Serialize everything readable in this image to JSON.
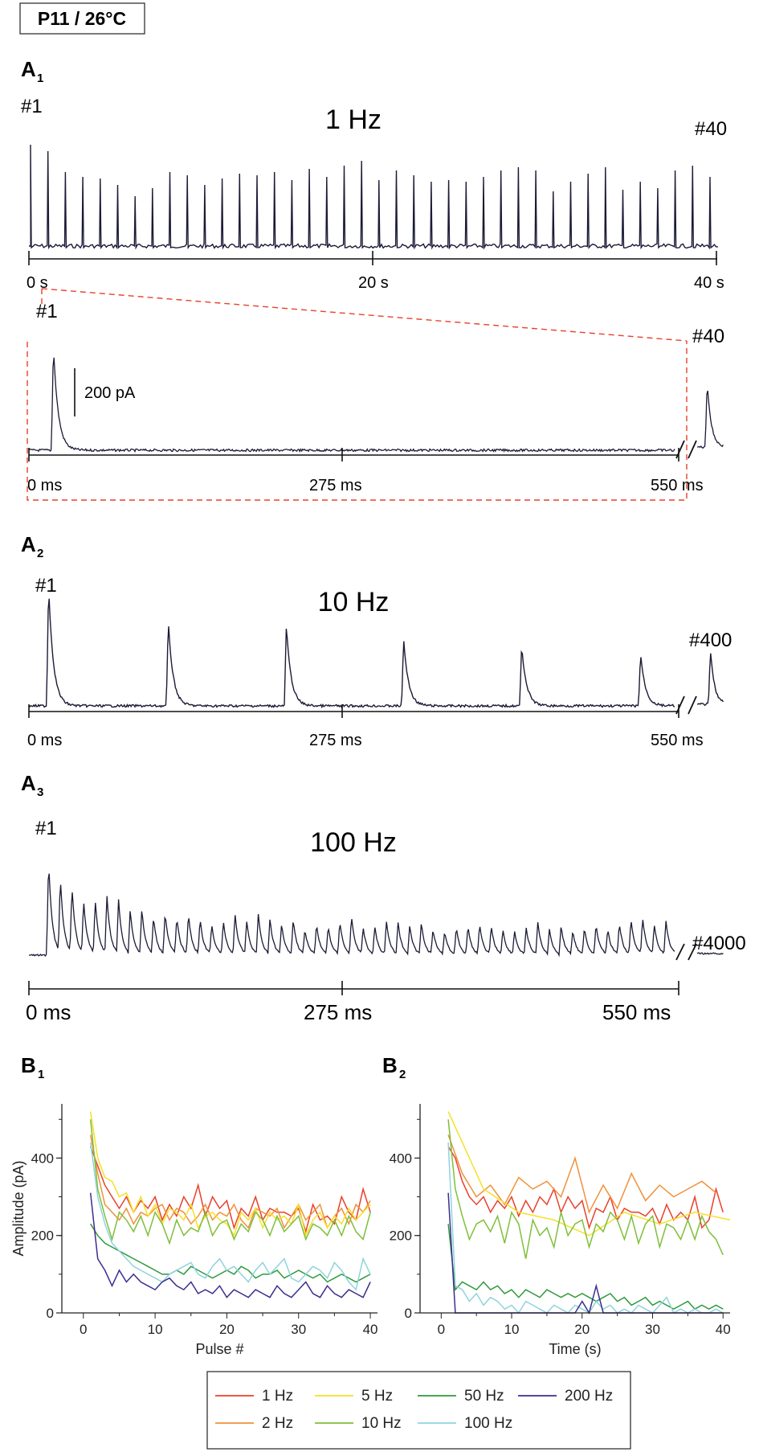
{
  "header": {
    "label": "P11 / 26°C"
  },
  "panels": {
    "A1": {
      "letter": "A",
      "sub": "1",
      "title": "1 Hz",
      "first_label": "#1",
      "last_label": "#40",
      "zoom_first": "#1",
      "zoom_last": "#40",
      "scale_label": "200 pA"
    },
    "A2": {
      "letter": "A",
      "sub": "2",
      "title": "10 Hz",
      "first_label": "#1",
      "last_label": "#400"
    },
    "A3": {
      "letter": "A",
      "sub": "3",
      "title": "100 Hz",
      "first_label": "#1",
      "last_label": "#4000"
    },
    "B1": {
      "letter": "B",
      "sub": "1"
    },
    "B2": {
      "letter": "B",
      "sub": "2"
    }
  },
  "trace_axes": {
    "A1_top": [
      "0 s",
      "20 s",
      "40 s"
    ],
    "A1_zoom": [
      "0 ms",
      "275 ms",
      "550 ms"
    ],
    "A2": [
      "0 ms",
      "275 ms",
      "550 ms"
    ],
    "A3": [
      "0 ms",
      "275 ms",
      "550 ms"
    ]
  },
  "chart_data": [
    {
      "type": "line",
      "id": "B1",
      "xlabel": "Pulse #",
      "ylabel": "Amplitude (pA)",
      "xlim": [
        -3,
        41
      ],
      "ylim": [
        0,
        540
      ],
      "xticks": [
        0,
        10,
        20,
        30,
        40
      ],
      "yticks": [
        0,
        200,
        400
      ],
      "x": [
        1,
        2,
        3,
        4,
        5,
        6,
        7,
        8,
        9,
        10,
        11,
        12,
        13,
        14,
        15,
        16,
        17,
        18,
        19,
        20,
        21,
        22,
        23,
        24,
        25,
        26,
        27,
        28,
        29,
        30,
        31,
        32,
        33,
        34,
        35,
        36,
        37,
        38,
        39,
        40
      ],
      "series": [
        {
          "name": "1 Hz",
          "color": "#e8412c",
          "values": [
            430,
            380,
            330,
            300,
            270,
            300,
            260,
            290,
            270,
            300,
            240,
            280,
            250,
            300,
            270,
            330,
            250,
            300,
            270,
            290,
            220,
            270,
            250,
            300,
            240,
            270,
            260,
            260,
            250,
            270,
            210,
            280,
            240,
            250,
            230,
            300,
            260,
            240,
            320,
            260
          ]
        },
        {
          "name": "2 Hz",
          "color": "#f0913a",
          "values": [
            460,
            360,
            280,
            260,
            240,
            270,
            230,
            260,
            250,
            270,
            280,
            240,
            270,
            260,
            230,
            250,
            280,
            240,
            260,
            250,
            280,
            240,
            220,
            270,
            260,
            250,
            270,
            220,
            250,
            280,
            240,
            260,
            280,
            220,
            250,
            270,
            230,
            280,
            260,
            290
          ]
        },
        {
          "name": "5 Hz",
          "color": "#f6e027",
          "values": [
            520,
            400,
            350,
            340,
            300,
            310,
            260,
            300,
            250,
            280,
            230,
            270,
            260,
            240,
            280,
            220,
            250,
            260,
            240,
            230,
            200,
            260,
            240,
            270,
            220,
            260,
            240,
            250,
            230,
            280,
            200,
            240,
            260,
            220,
            250,
            230,
            270,
            240,
            260,
            280
          ]
        },
        {
          "name": "10 Hz",
          "color": "#7fbf3a",
          "values": [
            500,
            320,
            250,
            190,
            260,
            240,
            210,
            250,
            200,
            260,
            230,
            180,
            240,
            200,
            220,
            210,
            260,
            200,
            230,
            240,
            190,
            230,
            210,
            260,
            240,
            200,
            250,
            210,
            230,
            250,
            190,
            230,
            220,
            200,
            240,
            200,
            250,
            210,
            190,
            260
          ]
        },
        {
          "name": "50 Hz",
          "color": "#2e9a3a",
          "values": [
            230,
            200,
            180,
            170,
            160,
            150,
            140,
            130,
            120,
            110,
            100,
            100,
            110,
            100,
            120,
            110,
            100,
            90,
            100,
            110,
            100,
            120,
            110,
            90,
            100,
            100,
            110,
            90,
            100,
            110,
            100,
            90,
            100,
            80,
            90,
            100,
            90,
            80,
            90,
            100
          ]
        },
        {
          "name": "100 Hz",
          "color": "#8fd3dc",
          "values": [
            440,
            300,
            230,
            180,
            160,
            140,
            120,
            110,
            100,
            90,
            80,
            100,
            110,
            120,
            130,
            100,
            90,
            120,
            140,
            110,
            120,
            100,
            80,
            110,
            130,
            100,
            120,
            140,
            90,
            80,
            100,
            120,
            110,
            90,
            130,
            110,
            80,
            60,
            140,
            100
          ]
        },
        {
          "name": "200 Hz",
          "color": "#3b2f8f",
          "values": [
            310,
            140,
            110,
            70,
            110,
            80,
            100,
            80,
            70,
            60,
            80,
            90,
            70,
            60,
            80,
            50,
            60,
            50,
            70,
            40,
            60,
            50,
            40,
            60,
            50,
            40,
            70,
            50,
            40,
            60,
            80,
            50,
            40,
            70,
            50,
            40,
            60,
            50,
            40,
            80
          ]
        }
      ]
    },
    {
      "type": "line",
      "id": "B2",
      "xlabel": "Time (s)",
      "ylabel": "",
      "xlim": [
        -3,
        41
      ],
      "ylim": [
        0,
        540
      ],
      "xticks": [
        0,
        10,
        20,
        30,
        40
      ],
      "yticks": [
        0,
        200,
        400
      ],
      "series": [
        {
          "name": "1 Hz",
          "color": "#e8412c",
          "x": [
            1,
            2,
            3,
            4,
            5,
            6,
            7,
            8,
            9,
            10,
            11,
            12,
            13,
            14,
            15,
            16,
            17,
            18,
            19,
            20,
            21,
            22,
            23,
            24,
            25,
            26,
            27,
            28,
            29,
            30,
            31,
            32,
            33,
            34,
            35,
            36,
            37,
            38,
            39,
            40
          ],
          "values": [
            430,
            400,
            340,
            300,
            280,
            300,
            260,
            290,
            270,
            300,
            250,
            290,
            260,
            300,
            280,
            320,
            260,
            300,
            270,
            290,
            220,
            270,
            260,
            300,
            240,
            270,
            260,
            260,
            250,
            270,
            230,
            280,
            240,
            260,
            240,
            300,
            220,
            240,
            320,
            260
          ]
        },
        {
          "name": "2 Hz",
          "color": "#f0913a",
          "x": [
            1,
            3,
            5,
            7,
            9,
            11,
            13,
            15,
            17,
            19,
            21,
            23,
            25,
            27,
            29,
            31,
            33,
            35,
            37,
            39
          ],
          "values": [
            460,
            360,
            300,
            330,
            280,
            350,
            320,
            340,
            300,
            400,
            260,
            330,
            270,
            360,
            290,
            330,
            300,
            320,
            340,
            310
          ]
        },
        {
          "name": "5 Hz",
          "color": "#f6e027",
          "x": [
            1,
            6,
            11,
            16,
            21,
            26,
            31,
            36,
            41
          ],
          "values": [
            520,
            320,
            260,
            240,
            200,
            260,
            230,
            260,
            240
          ]
        },
        {
          "name": "10 Hz",
          "color": "#7fbf3a",
          "x": [
            1,
            2,
            3,
            4,
            5,
            6,
            7,
            8,
            9,
            10,
            11,
            12,
            13,
            14,
            15,
            16,
            17,
            18,
            19,
            20,
            21,
            22,
            23,
            24,
            25,
            26,
            27,
            28,
            29,
            30,
            31,
            32,
            33,
            34,
            35,
            36,
            37,
            38,
            39,
            40
          ],
          "values": [
            500,
            320,
            250,
            190,
            230,
            240,
            210,
            250,
            180,
            260,
            230,
            140,
            240,
            200,
            220,
            170,
            260,
            200,
            230,
            240,
            170,
            230,
            210,
            260,
            240,
            190,
            250,
            180,
            230,
            250,
            170,
            230,
            220,
            190,
            240,
            190,
            250,
            210,
            190,
            150
          ]
        },
        {
          "name": "50 Hz",
          "color": "#2e9a3a",
          "x": [
            1,
            2,
            3,
            4,
            5,
            6,
            7,
            8,
            9,
            10,
            11,
            12,
            13,
            14,
            15,
            16,
            17,
            18,
            19,
            20,
            21,
            22,
            23,
            24,
            25,
            26,
            27,
            28,
            29,
            30,
            31,
            32,
            33,
            34,
            35,
            36,
            37,
            38,
            39,
            40
          ],
          "values": [
            230,
            60,
            80,
            70,
            60,
            80,
            60,
            70,
            50,
            60,
            40,
            60,
            50,
            40,
            60,
            50,
            40,
            50,
            40,
            50,
            40,
            30,
            40,
            50,
            30,
            40,
            20,
            30,
            40,
            20,
            30,
            20,
            10,
            20,
            30,
            10,
            20,
            10,
            20,
            10
          ]
        },
        {
          "name": "100 Hz",
          "color": "#8fd3dc",
          "x": [
            1,
            2,
            3,
            4,
            5,
            6,
            7,
            8,
            9,
            10,
            11,
            12,
            13,
            14,
            15,
            16,
            17,
            18,
            19,
            20,
            21,
            22,
            23,
            24,
            25,
            26,
            27,
            28,
            29,
            30,
            31,
            32,
            33,
            34,
            35,
            36,
            37,
            38,
            39,
            40
          ],
          "values": [
            440,
            70,
            60,
            30,
            50,
            20,
            40,
            30,
            10,
            20,
            0,
            30,
            20,
            10,
            0,
            20,
            10,
            0,
            20,
            10,
            0,
            30,
            10,
            20,
            0,
            10,
            0,
            20,
            10,
            0,
            20,
            40,
            0,
            10,
            0,
            10,
            0,
            0,
            10,
            0
          ]
        },
        {
          "name": "200 Hz",
          "color": "#3b2f8f",
          "x": [
            1,
            2,
            3,
            5,
            8,
            12,
            16,
            19,
            20,
            21,
            22,
            23,
            25,
            28,
            31,
            34,
            37,
            40
          ],
          "values": [
            310,
            0,
            0,
            0,
            0,
            0,
            0,
            0,
            30,
            0,
            70,
            0,
            0,
            0,
            0,
            0,
            0,
            0
          ]
        }
      ]
    }
  ],
  "legend": [
    "1 Hz",
    "2 Hz",
    "5 Hz",
    "10 Hz",
    "50 Hz",
    "100 Hz",
    "200 Hz"
  ]
}
